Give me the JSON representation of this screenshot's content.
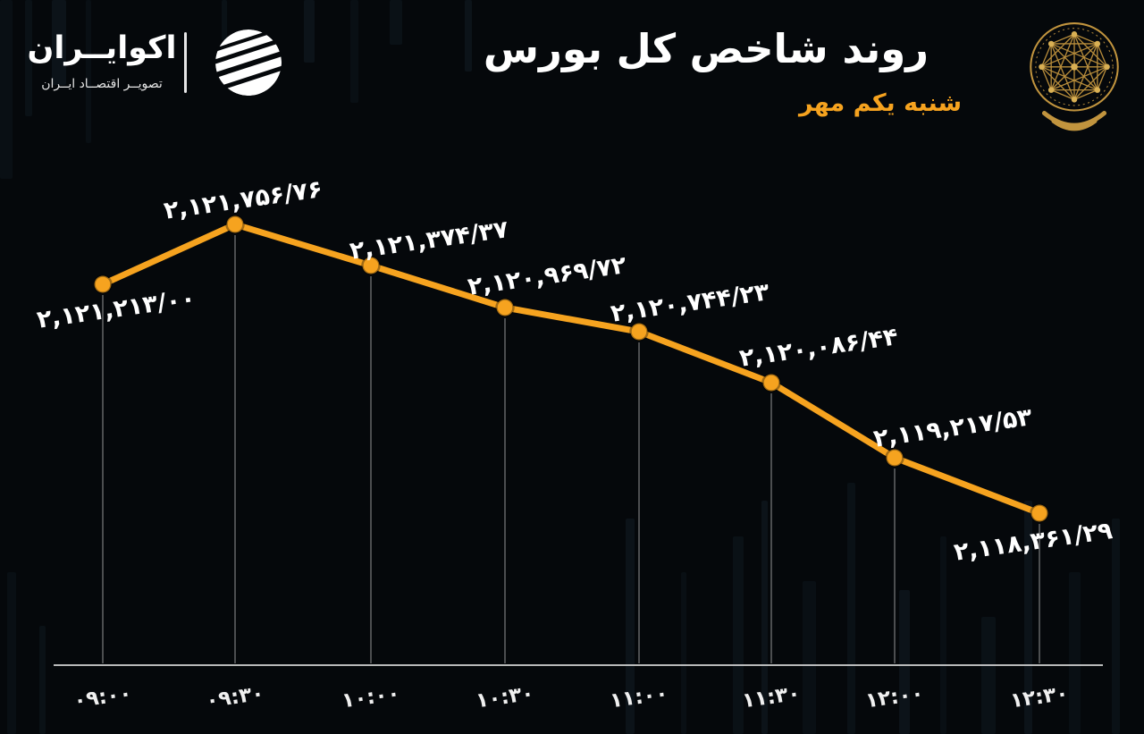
{
  "header": {
    "title": "روند شاخص کل بورس",
    "subtitle": "شنبه یکم مهر",
    "brand": {
      "name": "اکوایــران",
      "tagline": "تصویــر اقتصــاد ایــران"
    }
  },
  "colors": {
    "accent": "#F6A31F",
    "gold": "#C1943E",
    "background": "#05080B",
    "text": "#FFFFFF"
  },
  "icons": {
    "brand_globe": "striped-globe-icon",
    "emblem": "bourse-gold-emblem-icon"
  },
  "chart_data": {
    "type": "line",
    "title": "روند شاخص کل بورس",
    "subtitle": "شنبه یکم مهر",
    "x": [
      "۰۹:۰۰",
      "۰۹:۳۰",
      "۱۰:۰۰",
      "۱۰:۳۰",
      "۱۱:۰۰",
      "۱۱:۳۰",
      "۱۲:۰۰",
      "۱۲:۳۰"
    ],
    "series": [
      {
        "name": "شاخص کل بورس",
        "values": [
          2121213.0,
          2121756.76,
          2121374.37,
          2120969.72,
          2120744.23,
          2120086.44,
          2119217.53,
          2118361.29
        ]
      }
    ],
    "point_labels": [
      "۲,۱۲۱,۲۱۳/۰۰",
      "۲,۱۲۱,۷۵۶/۷۶",
      "۲,۱۲۱,۳۷۴/۳۷",
      "۲,۱۲۰,۹۶۹/۷۲",
      "۲,۱۲۰,۷۴۴/۲۳",
      "۲,۱۲۰,۰۸۶/۴۴",
      "۲,۱۱۹,۲۱۷/۵۳",
      "۲,۱۱۸,۳۶۱/۲۹"
    ],
    "xlabel": "",
    "ylabel": "",
    "ylim": [
      2118000,
      2122200
    ],
    "grid": false,
    "legend": false,
    "line_color": "#F6A31F",
    "marker_color": "#F6A31F"
  }
}
